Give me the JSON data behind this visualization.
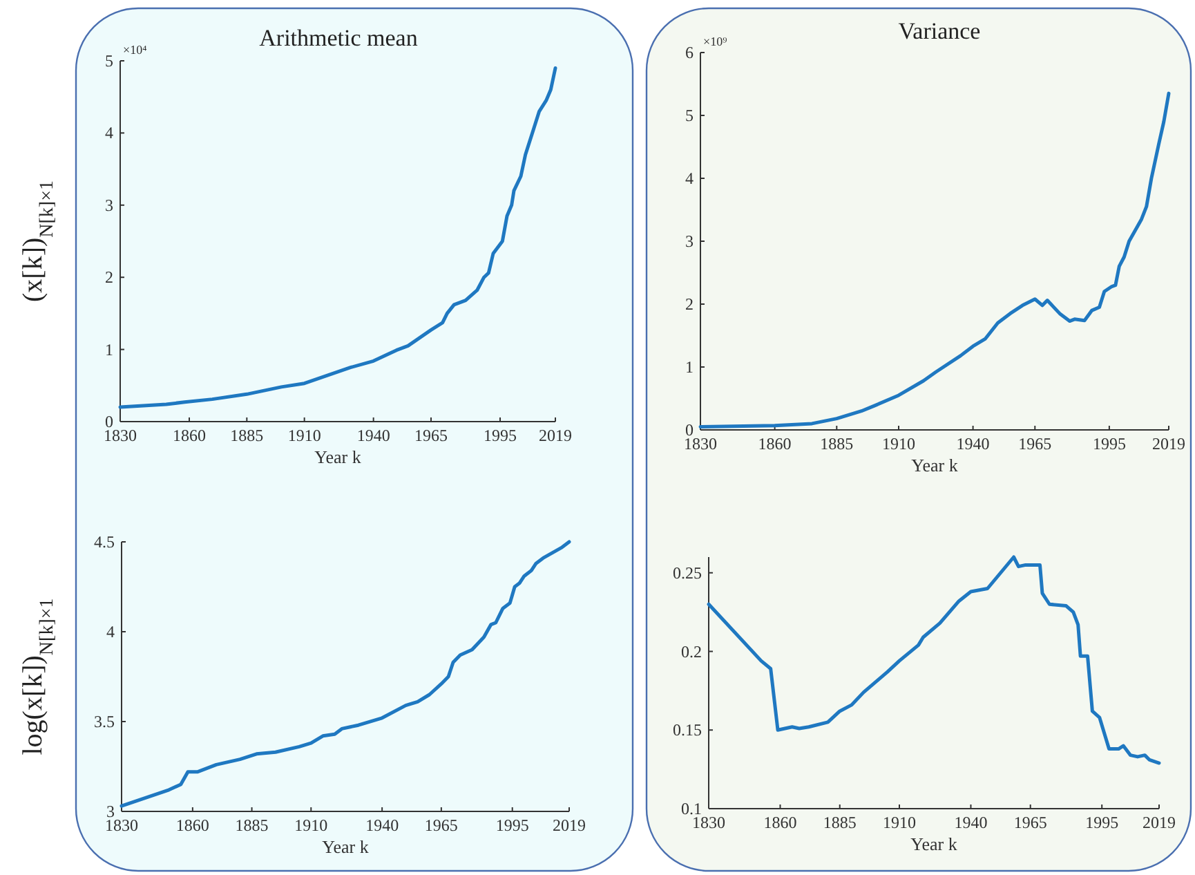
{
  "chart_data": [
    {
      "type": "line",
      "title": "Arithmetic mean",
      "xlabel": "Year k",
      "ylabel": "(x[k])$_{N[k]×1}$",
      "annotations": [
        "×10⁴"
      ],
      "xlim": [
        1830,
        2019
      ],
      "xticks": [
        1830,
        1860,
        1885,
        1910,
        1940,
        1965,
        1995,
        2019
      ],
      "ylim": [
        0,
        5
      ],
      "yticks": [
        0,
        1,
        2,
        3,
        4,
        5
      ],
      "grid": false,
      "series": [
        {
          "color": "#1f78c1",
          "x": [
            1830,
            1850,
            1858,
            1870,
            1885,
            1900,
            1910,
            1920,
            1930,
            1940,
            1950,
            1955,
            1960,
            1965,
            1970,
            1972,
            1975,
            1980,
            1985,
            1988,
            1990,
            1992,
            1996,
            1998,
            2000,
            2001,
            2004,
            2006,
            2009,
            2012,
            2015,
            2017,
            2019
          ],
          "values": [
            0.2,
            0.24,
            0.27,
            0.31,
            0.38,
            0.48,
            0.53,
            0.64,
            0.75,
            0.84,
            0.99,
            1.05,
            1.16,
            1.27,
            1.37,
            1.5,
            1.62,
            1.68,
            1.82,
            2.0,
            2.06,
            2.33,
            2.5,
            2.85,
            3.0,
            3.2,
            3.4,
            3.7,
            4.0,
            4.3,
            4.45,
            4.6,
            4.9
          ]
        }
      ]
    },
    {
      "type": "line",
      "title": "Variance",
      "xlabel": "Year k",
      "annotations": [
        "×10⁹"
      ],
      "xlim": [
        1830,
        2019
      ],
      "xticks": [
        1830,
        1860,
        1885,
        1910,
        1940,
        1965,
        1995,
        2019
      ],
      "ylim": [
        0,
        6
      ],
      "yticks": [
        0,
        1,
        2,
        3,
        4,
        5,
        6
      ],
      "grid": false,
      "series": [
        {
          "color": "#1f78c1",
          "x": [
            1830,
            1860,
            1875,
            1885,
            1895,
            1900,
            1910,
            1920,
            1925,
            1935,
            1940,
            1945,
            1950,
            1955,
            1960,
            1965,
            1968,
            1970,
            1975,
            1979,
            1981,
            1985,
            1988,
            1991,
            1993,
            1996,
            1997.5,
            1999,
            2001,
            2003,
            2008,
            2010,
            2012,
            2015,
            2017,
            2019
          ],
          "values": [
            0.05,
            0.07,
            0.1,
            0.18,
            0.3,
            0.38,
            0.55,
            0.78,
            0.92,
            1.18,
            1.33,
            1.45,
            1.7,
            1.85,
            1.98,
            2.08,
            1.98,
            2.06,
            1.85,
            1.73,
            1.76,
            1.74,
            1.9,
            1.95,
            2.2,
            2.28,
            2.3,
            2.6,
            2.75,
            3.0,
            3.35,
            3.55,
            4.0,
            4.55,
            4.9,
            5.35
          ]
        }
      ]
    },
    {
      "type": "line",
      "xlabel": "Year k",
      "ylabel": "log(x[k])$_{N[k]×1}$",
      "xlim": [
        1830,
        2019
      ],
      "xticks": [
        1830,
        1860,
        1885,
        1910,
        1940,
        1965,
        1995,
        2019
      ],
      "ylim": [
        3,
        4.5
      ],
      "yticks": [
        3,
        3.5,
        4,
        4.5
      ],
      "grid": false,
      "series": [
        {
          "color": "#1f78c1",
          "x": [
            1830,
            1850,
            1855,
            1858,
            1862,
            1870,
            1880,
            1887,
            1895,
            1905,
            1910,
            1915,
            1920,
            1923,
            1930,
            1940,
            1950,
            1955,
            1960,
            1965,
            1968,
            1970,
            1973,
            1978,
            1983,
            1986,
            1988,
            1991,
            1994,
            1996,
            1998,
            2000,
            2003,
            2005,
            2008,
            2012,
            2016,
            2019
          ],
          "values": [
            3.03,
            3.12,
            3.15,
            3.22,
            3.22,
            3.26,
            3.29,
            3.32,
            3.33,
            3.36,
            3.38,
            3.42,
            3.43,
            3.46,
            3.48,
            3.52,
            3.59,
            3.61,
            3.65,
            3.71,
            3.75,
            3.83,
            3.87,
            3.9,
            3.97,
            4.04,
            4.05,
            4.13,
            4.16,
            4.25,
            4.27,
            4.31,
            4.34,
            4.38,
            4.41,
            4.44,
            4.47,
            4.5
          ]
        }
      ]
    },
    {
      "type": "line",
      "xlabel": "Year k",
      "xlim": [
        1830,
        2019
      ],
      "xticks": [
        1830,
        1860,
        1885,
        1910,
        1940,
        1965,
        1995,
        2019
      ],
      "ylim": [
        0.1,
        0.26
      ],
      "yticks": [
        0.1,
        0.15,
        0.2,
        0.25
      ],
      "grid": false,
      "series": [
        {
          "color": "#1f78c1",
          "x": [
            1830,
            1852,
            1856,
            1859,
            1865,
            1868,
            1872,
            1880,
            1885,
            1890,
            1895,
            1905,
            1910,
            1918,
            1920,
            1927,
            1935,
            1940,
            1947,
            1958,
            1960,
            1963,
            1969,
            1970,
            1973,
            1980,
            1983,
            1985,
            1986,
            1989,
            1991,
            1994,
            1996,
            1998,
            2002,
            2004,
            2007,
            2010,
            2013,
            2015,
            2019
          ],
          "values": [
            0.23,
            0.194,
            0.189,
            0.15,
            0.152,
            0.151,
            0.152,
            0.155,
            0.162,
            0.166,
            0.174,
            0.187,
            0.194,
            0.204,
            0.209,
            0.218,
            0.232,
            0.238,
            0.24,
            0.26,
            0.254,
            0.255,
            0.255,
            0.237,
            0.23,
            0.229,
            0.225,
            0.217,
            0.197,
            0.197,
            0.162,
            0.158,
            0.148,
            0.138,
            0.138,
            0.14,
            0.134,
            0.133,
            0.134,
            0.131,
            0.129
          ]
        }
      ]
    }
  ]
}
